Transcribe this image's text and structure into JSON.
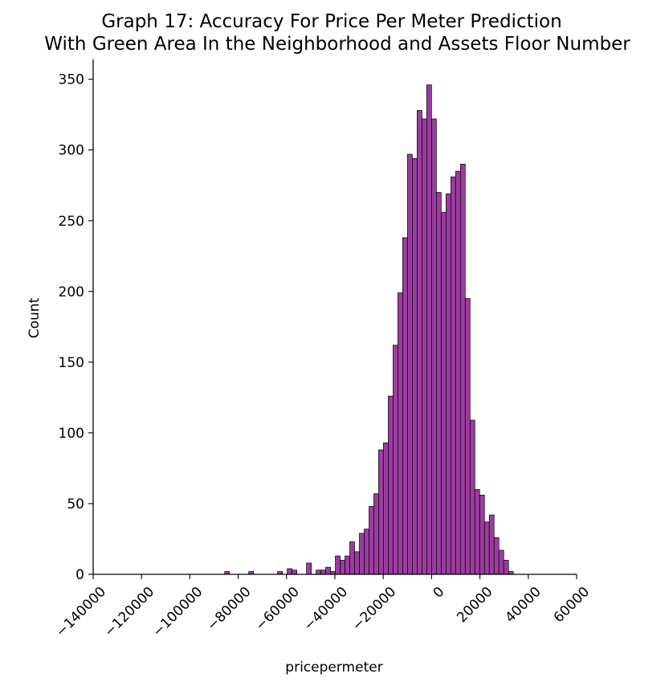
{
  "chart_data": {
    "type": "bar",
    "title_line1": "Graph 17: Accuracy For Price Per Meter Prediction",
    "title_line2": "With Green Area In the Neighborhood and Assets Floor Number",
    "xlabel": "pricepermeter",
    "ylabel": "Count",
    "xlim": [
      -140000,
      60000
    ],
    "ylim": [
      0,
      364
    ],
    "x_ticks": [
      {
        "value": -140000,
        "label": "−140000"
      },
      {
        "value": -120000,
        "label": "−120000"
      },
      {
        "value": -100000,
        "label": "−100000"
      },
      {
        "value": -80000,
        "label": "−80000"
      },
      {
        "value": -60000,
        "label": "−60000"
      },
      {
        "value": -40000,
        "label": "−40000"
      },
      {
        "value": -20000,
        "label": "−20000"
      },
      {
        "value": 0,
        "label": "0"
      },
      {
        "value": 20000,
        "label": "20000"
      },
      {
        "value": 40000,
        "label": "40000"
      },
      {
        "value": 60000,
        "label": "60000"
      }
    ],
    "y_ticks": [
      {
        "value": 0,
        "label": "0"
      },
      {
        "value": 50,
        "label": "50"
      },
      {
        "value": 100,
        "label": "100"
      },
      {
        "value": 150,
        "label": "150"
      },
      {
        "value": 200,
        "label": "200"
      },
      {
        "value": 250,
        "label": "250"
      },
      {
        "value": 300,
        "label": "300"
      },
      {
        "value": 350,
        "label": "350"
      }
    ],
    "grid": false,
    "bar_color": "#8b1a8f",
    "edge_color": "#000000",
    "bin_width": 1990,
    "bins": [
      {
        "x": -85600,
        "count": 2
      },
      {
        "x": -75650,
        "count": 2
      },
      {
        "x": -63700,
        "count": 2
      },
      {
        "x": -59720,
        "count": 4
      },
      {
        "x": -57730,
        "count": 3
      },
      {
        "x": -51760,
        "count": 8
      },
      {
        "x": -47780,
        "count": 3
      },
      {
        "x": -45790,
        "count": 3
      },
      {
        "x": -43800,
        "count": 5
      },
      {
        "x": -41810,
        "count": 2
      },
      {
        "x": -39820,
        "count": 13
      },
      {
        "x": -37830,
        "count": 10
      },
      {
        "x": -35840,
        "count": 13
      },
      {
        "x": -33850,
        "count": 23
      },
      {
        "x": -31860,
        "count": 16
      },
      {
        "x": -29870,
        "count": 29
      },
      {
        "x": -27880,
        "count": 32
      },
      {
        "x": -25890,
        "count": 48
      },
      {
        "x": -23900,
        "count": 57
      },
      {
        "x": -21910,
        "count": 88
      },
      {
        "x": -19920,
        "count": 93
      },
      {
        "x": -17930,
        "count": 126
      },
      {
        "x": -15940,
        "count": 162
      },
      {
        "x": -13950,
        "count": 199
      },
      {
        "x": -11960,
        "count": 238
      },
      {
        "x": -9970,
        "count": 297
      },
      {
        "x": -7980,
        "count": 294
      },
      {
        "x": -5990,
        "count": 328
      },
      {
        "x": -4000,
        "count": 322
      },
      {
        "x": -2010,
        "count": 346
      },
      {
        "x": -20,
        "count": 322
      },
      {
        "x": 1970,
        "count": 270
      },
      {
        "x": 3960,
        "count": 256
      },
      {
        "x": 5950,
        "count": 269
      },
      {
        "x": 7940,
        "count": 281
      },
      {
        "x": 9930,
        "count": 285
      },
      {
        "x": 11920,
        "count": 290
      },
      {
        "x": 13910,
        "count": 195
      },
      {
        "x": 15900,
        "count": 109
      },
      {
        "x": 17890,
        "count": 60
      },
      {
        "x": 19880,
        "count": 56
      },
      {
        "x": 21870,
        "count": 37
      },
      {
        "x": 23860,
        "count": 42
      },
      {
        "x": 25850,
        "count": 26
      },
      {
        "x": 27840,
        "count": 17
      },
      {
        "x": 29830,
        "count": 10
      },
      {
        "x": 31820,
        "count": 2
      }
    ]
  }
}
